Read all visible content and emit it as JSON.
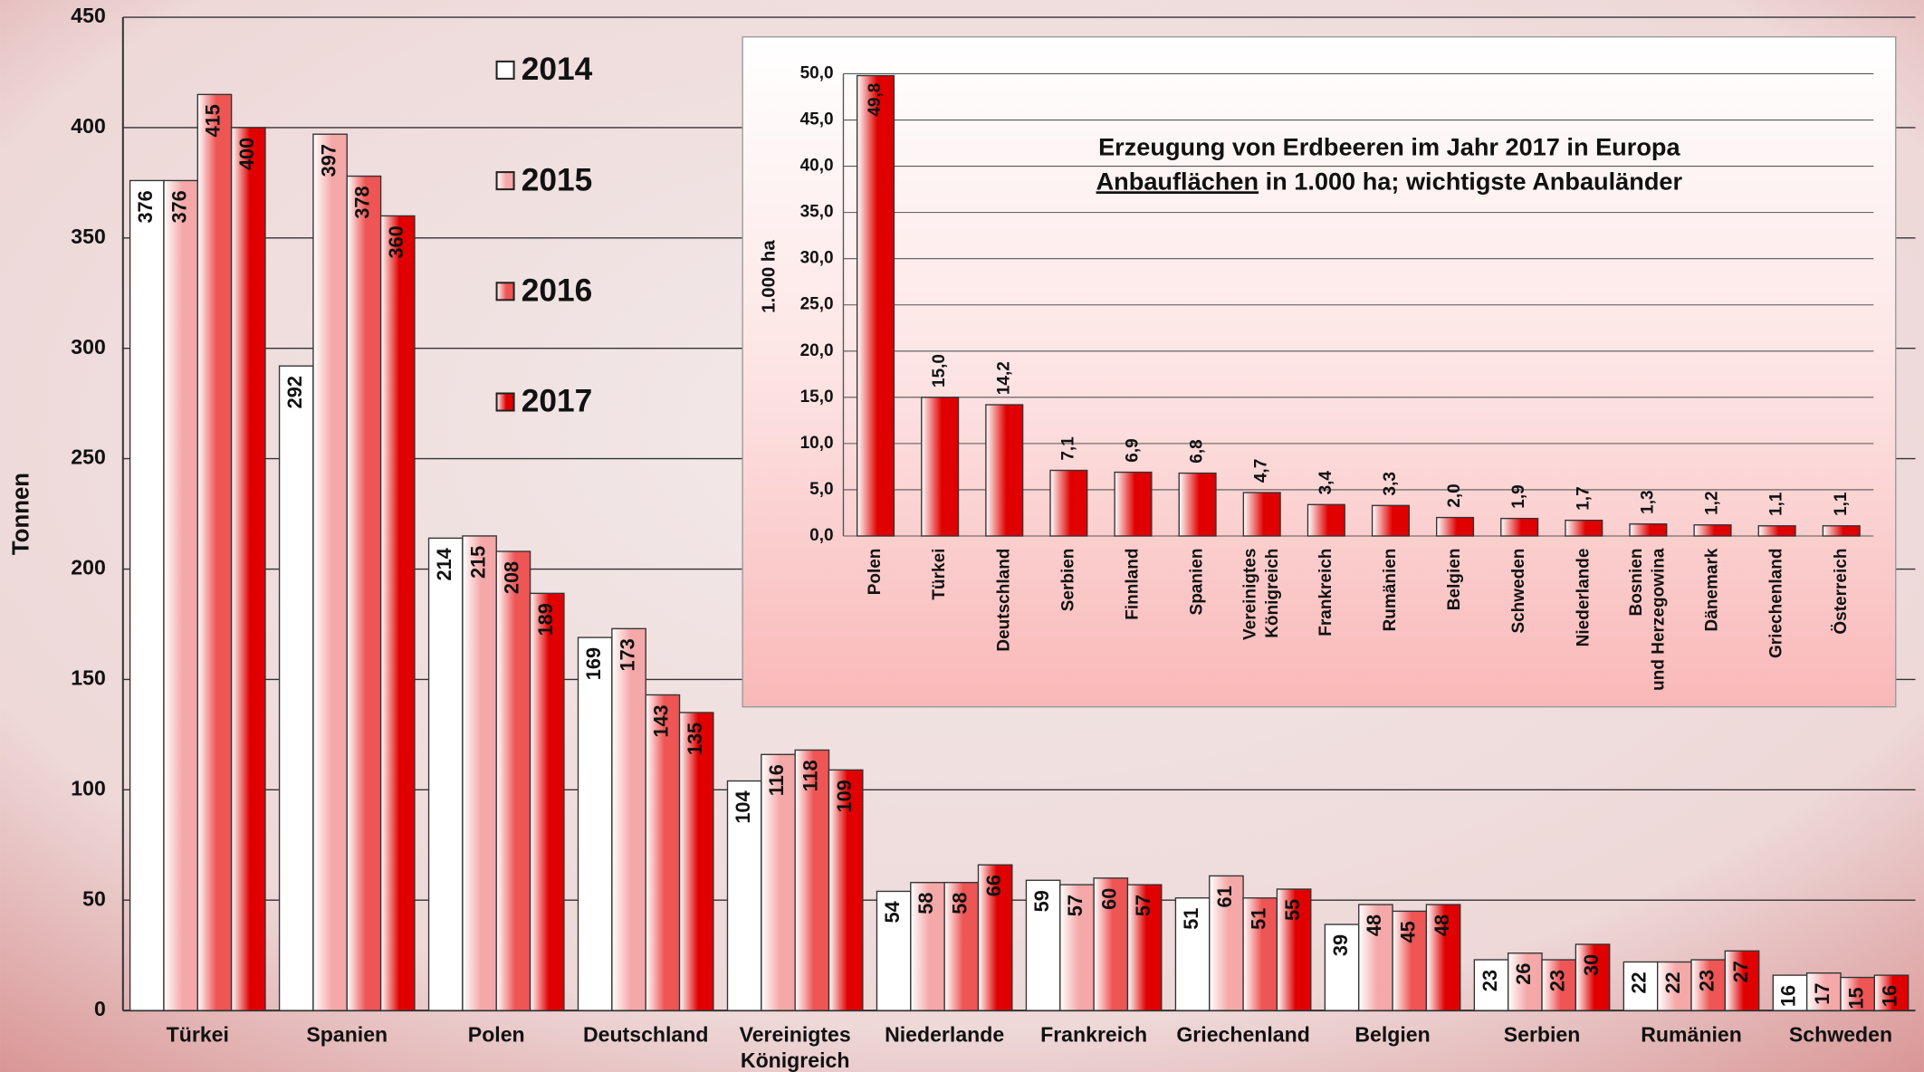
{
  "chart_data": [
    {
      "type": "bar",
      "y_label": "Tonnen",
      "categories": [
        "Türkei",
        "Spanien",
        "Polen",
        "Deutschland",
        "Vereinigtes Königreich",
        "Niederlande",
        "Frankreich",
        "Griechenland",
        "Belgien",
        "Serbien",
        "Rumänien",
        "Schweden"
      ],
      "series": [
        {
          "name": "2014",
          "color": "#ffffff",
          "values": [
            376,
            292,
            214,
            169,
            104,
            54,
            59,
            51,
            39,
            23,
            22,
            16
          ]
        },
        {
          "name": "2015",
          "color": "#f5a8a8",
          "values": [
            376,
            397,
            215,
            173,
            116,
            58,
            57,
            61,
            48,
            26,
            22,
            17
          ]
        },
        {
          "name": "2016",
          "color": "#ee5555",
          "values": [
            415,
            378,
            208,
            143,
            118,
            58,
            60,
            51,
            45,
            23,
            23,
            15
          ]
        },
        {
          "name": "2017",
          "color": "#e00000",
          "values": [
            400,
            360,
            189,
            135,
            109,
            66,
            57,
            55,
            48,
            30,
            27,
            16
          ]
        }
      ],
      "ylim": [
        0,
        450
      ],
      "yticks": [
        0,
        50,
        100,
        150,
        200,
        250,
        300,
        350,
        400,
        450
      ],
      "grid": true
    },
    {
      "type": "bar",
      "title": "Erzeugung von Erdbeeren im Jahr 2017 in Europa",
      "subtitle": "Anbauflächen in 1.000 ha; wichtigste Anbauländer",
      "y_label": "1.000 ha",
      "categories": [
        "Polen",
        "Türkei",
        "Deutschland",
        "Serbien",
        "Finnland",
        "Spanien",
        "Vereinigtes Königreich",
        "Frankreich",
        "Rumänien",
        "Belgien",
        "Schweden",
        "Niederlande",
        "Bosnien und Herzegowina",
        "Dänemark",
        "Griechenland",
        "Österreich"
      ],
      "values": [
        49.8,
        15.0,
        14.2,
        7.1,
        6.9,
        6.8,
        4.7,
        3.4,
        3.3,
        2.0,
        1.9,
        1.7,
        1.3,
        1.2,
        1.1,
        1.1
      ],
      "value_labels": [
        "49,8",
        "15,0",
        "14,2",
        "7,1",
        "6,9",
        "6,8",
        "4,7",
        "3,4",
        "3,3",
        "2,0",
        "1,9",
        "1,7",
        "1,3",
        "1,2",
        "1,1",
        "1,1"
      ],
      "color": "#e00000",
      "ylim": [
        0,
        50
      ],
      "yticks": [
        {
          "value": 0,
          "label": "0,0"
        },
        {
          "value": 5,
          "label": "5,0"
        },
        {
          "value": 10,
          "label": "10,0"
        },
        {
          "value": 15,
          "label": "15,0"
        },
        {
          "value": 20,
          "label": "20,0"
        },
        {
          "value": 25,
          "label": "25,0"
        },
        {
          "value": 30,
          "label": "30,0"
        },
        {
          "value": 35,
          "label": "35,0"
        },
        {
          "value": 40,
          "label": "40,0"
        },
        {
          "value": 45,
          "label": "45,0"
        },
        {
          "value": 50,
          "label": "50,0"
        }
      ],
      "grid": true
    }
  ]
}
